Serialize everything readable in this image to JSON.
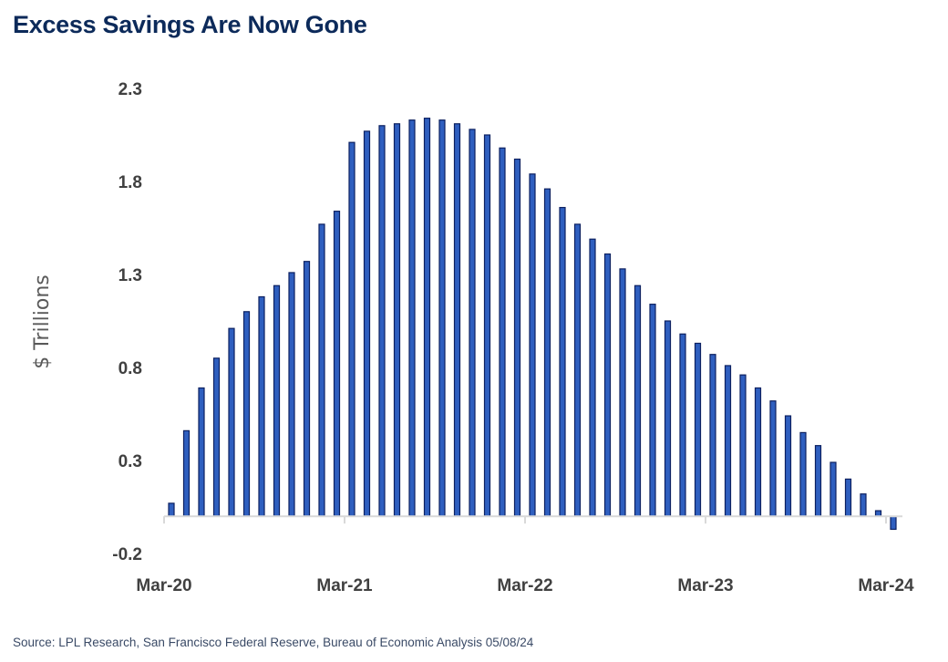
{
  "title": "Excess Savings Are Now Gone",
  "source": "Source: LPL Research, San Francisco Federal Reserve, Bureau of Economic Analysis 05/08/24",
  "chart_data": {
    "type": "bar",
    "ylabel": "$ Trillions",
    "xlabel": "",
    "ylim": [
      -0.2,
      2.3
    ],
    "yticks": [
      "2.3",
      "1.8",
      "1.3",
      "0.8",
      "0.3",
      "-0.2"
    ],
    "xticks": [
      "Mar-20",
      "Mar-21",
      "Mar-22",
      "Mar-23",
      "Mar-24"
    ],
    "grid": false,
    "colors": {
      "bar_fill": "#2f5fbf",
      "bar_stroke": "#0c2060",
      "axis": "#d9d9d9"
    },
    "categories": [
      "Mar-20",
      "Apr-20",
      "May-20",
      "Jun-20",
      "Jul-20",
      "Aug-20",
      "Sep-20",
      "Oct-20",
      "Nov-20",
      "Dec-20",
      "Jan-21",
      "Feb-21",
      "Mar-21",
      "Apr-21",
      "May-21",
      "Jun-21",
      "Jul-21",
      "Aug-21",
      "Sep-21",
      "Oct-21",
      "Nov-21",
      "Dec-21",
      "Jan-22",
      "Feb-22",
      "Mar-22",
      "Apr-22",
      "May-22",
      "Jun-22",
      "Jul-22",
      "Aug-22",
      "Sep-22",
      "Oct-22",
      "Nov-22",
      "Dec-22",
      "Jan-23",
      "Feb-23",
      "Mar-23",
      "Apr-23",
      "May-23",
      "Jun-23",
      "Jul-23",
      "Aug-23",
      "Sep-23",
      "Oct-23",
      "Nov-23",
      "Dec-23",
      "Jan-24",
      "Feb-24",
      "Mar-24"
    ],
    "values": [
      0.07,
      0.46,
      0.69,
      0.85,
      1.01,
      1.1,
      1.18,
      1.24,
      1.31,
      1.37,
      1.57,
      1.64,
      2.01,
      2.07,
      2.1,
      2.11,
      2.13,
      2.14,
      2.13,
      2.11,
      2.08,
      2.05,
      1.98,
      1.92,
      1.84,
      1.76,
      1.66,
      1.57,
      1.49,
      1.41,
      1.33,
      1.24,
      1.14,
      1.05,
      0.98,
      0.93,
      0.87,
      0.81,
      0.76,
      0.69,
      0.62,
      0.54,
      0.45,
      0.38,
      0.29,
      0.2,
      0.12,
      0.03,
      -0.07
    ]
  }
}
